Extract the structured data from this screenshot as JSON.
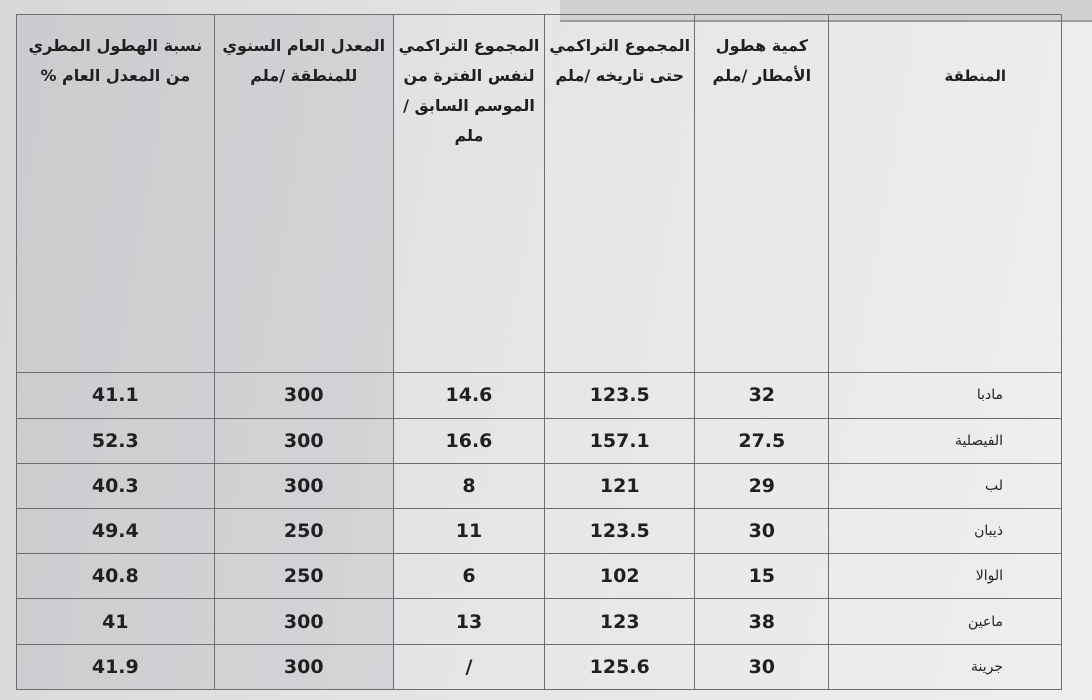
{
  "table": {
    "headers": {
      "region": "المنطقة",
      "rainfall": "كمية هطول الأمطار /ملم",
      "cumulative": "المجموع التراكمي حتى تاريخه /ملم",
      "previous_season": "المجموع التراكمي لنفس الفترة من الموسم السابق /ملم",
      "annual_average": "المعدل العام السنوي للمنطقة /ملم",
      "percentage": "نسبة الهطول المطري من المعدل العام %"
    },
    "rows": [
      {
        "region": "مادبا",
        "rainfall": "32",
        "cumulative": "123.5",
        "previous_season": "14.6",
        "annual_average": "300",
        "percentage": "41.1"
      },
      {
        "region": "الفيصلية",
        "rainfall": "27.5",
        "cumulative": "157.1",
        "previous_season": "16.6",
        "annual_average": "300",
        "percentage": "52.3"
      },
      {
        "region": "لب",
        "rainfall": "29",
        "cumulative": "121",
        "previous_season": "8",
        "annual_average": "300",
        "percentage": "40.3"
      },
      {
        "region": "ذيبان",
        "rainfall": "30",
        "cumulative": "123.5",
        "previous_season": "11",
        "annual_average": "250",
        "percentage": "49.4"
      },
      {
        "region": "الوالا",
        "rainfall": "15",
        "cumulative": "102",
        "previous_season": "6",
        "annual_average": "250",
        "percentage": "40.8"
      },
      {
        "region": "ماعين",
        "rainfall": "38",
        "cumulative": "123",
        "previous_season": "13",
        "annual_average": "300",
        "percentage": "41"
      },
      {
        "region": "جرينة",
        "rainfall": "30",
        "cumulative": "125.6",
        "previous_season": "/",
        "annual_average": "300",
        "percentage": "41.9"
      }
    ]
  }
}
